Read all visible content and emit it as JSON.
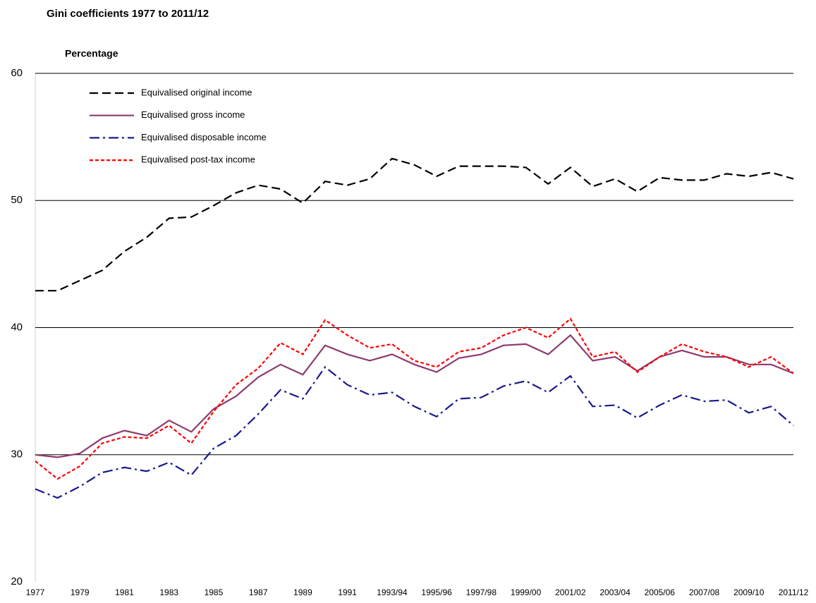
{
  "chart_data": {
    "type": "line",
    "title": "Gini coefficients 1977 to 2011/12",
    "y_label": "Percentage",
    "categories": [
      "1977",
      null,
      "1979",
      null,
      "1981",
      null,
      "1983",
      null,
      "1985",
      null,
      "1987",
      null,
      "1989",
      null,
      "1991",
      null,
      "1993/94",
      null,
      "1995/96",
      null,
      "1997/98",
      null,
      "1999/00",
      null,
      "2001/02",
      null,
      "2003/04",
      null,
      "2005/06",
      null,
      "2007/08",
      null,
      "2009/10",
      null,
      "2011/12"
    ],
    "series": [
      {
        "name": "Equivalised original income",
        "color": "#000000",
        "dash": "long-dash",
        "values": [
          42.9,
          42.9,
          43.7,
          44.5,
          46.0,
          47.1,
          48.6,
          48.7,
          49.6,
          50.6,
          51.2,
          50.9,
          49.8,
          51.5,
          51.2,
          51.7,
          53.3,
          52.8,
          51.9,
          52.7,
          52.7,
          52.7,
          52.6,
          51.3,
          52.6,
          51.1,
          51.7,
          50.7,
          51.8,
          51.6,
          51.6,
          52.1,
          51.9,
          52.2,
          51.7
        ]
      },
      {
        "name": "Equivalised gross income",
        "color": "#8e3a6e",
        "dash": "solid",
        "values": [
          30.0,
          29.8,
          30.1,
          31.3,
          31.9,
          31.5,
          32.7,
          31.8,
          33.6,
          34.6,
          36.1,
          37.1,
          36.3,
          38.6,
          37.9,
          37.4,
          37.9,
          37.1,
          36.5,
          37.6,
          37.9,
          38.6,
          38.7,
          37.9,
          39.4,
          37.4,
          37.7,
          36.6,
          37.7,
          38.2,
          37.7,
          37.7,
          37.1,
          37.1,
          36.4
        ]
      },
      {
        "name": "Equivalised disposable income",
        "color": "#1a1a8c",
        "dash": "dash-dot",
        "values": [
          27.3,
          26.6,
          27.5,
          28.6,
          29.0,
          28.7,
          29.4,
          28.4,
          30.5,
          31.5,
          33.2,
          35.1,
          34.4,
          36.9,
          35.5,
          34.7,
          34.9,
          33.8,
          33.0,
          34.4,
          34.5,
          35.4,
          35.8,
          34.9,
          36.2,
          33.8,
          33.9,
          32.9,
          33.9,
          34.7,
          34.2,
          34.3,
          33.3,
          33.8,
          32.3
        ]
      },
      {
        "name": "Equivalised post-tax income",
        "color": "#ff0000",
        "dash": "short-dash",
        "values": [
          29.5,
          28.1,
          29.1,
          30.9,
          31.4,
          31.3,
          32.3,
          30.9,
          33.4,
          35.5,
          36.8,
          38.8,
          37.9,
          40.6,
          39.4,
          38.4,
          38.7,
          37.4,
          36.9,
          38.1,
          38.4,
          39.4,
          40.0,
          39.2,
          40.7,
          37.7,
          38.1,
          36.5,
          37.7,
          38.7,
          38.1,
          37.7,
          36.9,
          37.7,
          36.4
        ]
      }
    ],
    "ylim": [
      20,
      60
    ],
    "yticks": [
      20,
      30,
      40,
      50,
      60
    ],
    "grid": true,
    "legend": "top-left"
  }
}
